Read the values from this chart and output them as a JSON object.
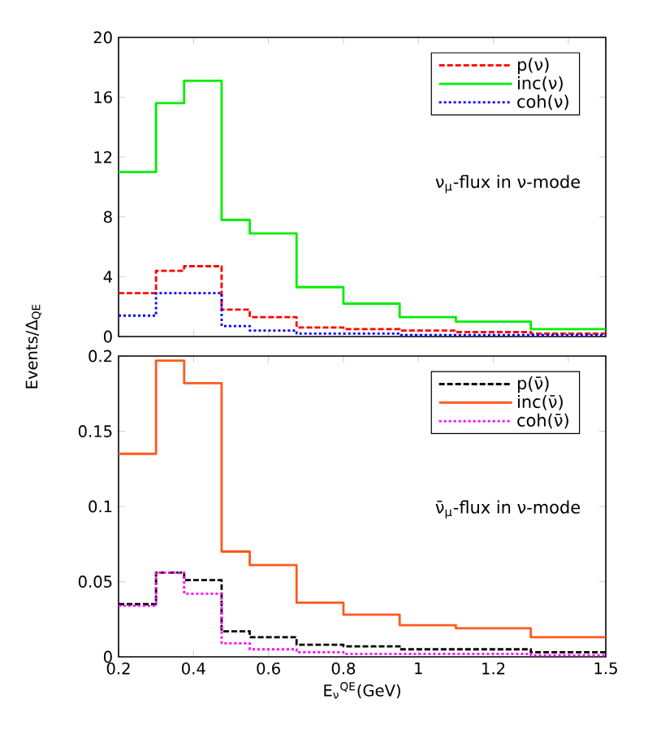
{
  "chart_data": [
    {
      "type": "histogram",
      "ylabel": "Events/Δ$_{QE}$",
      "bins": [
        0.2,
        0.3,
        0.375,
        0.475,
        0.55,
        0.675,
        0.8,
        0.95,
        1.1,
        1.3,
        1.5
      ],
      "series": [
        {
          "name": "p(ν)",
          "color": "#ff0000",
          "line_style": "dashed",
          "values": [
            2.9,
            4.4,
            4.7,
            1.8,
            1.3,
            0.6,
            0.5,
            0.4,
            0.3,
            0.2
          ]
        },
        {
          "name": "inc(ν)",
          "color": "#00ee00",
          "line_style": "solid",
          "values": [
            11,
            15.6,
            17.1,
            7.8,
            6.9,
            3.3,
            2.2,
            1.3,
            1.0,
            0.5
          ]
        },
        {
          "name": "coh(ν)",
          "color": "#0000ff",
          "line_style": "dotted",
          "values": [
            1.4,
            2.9,
            2.9,
            0.7,
            0.4,
            0.2,
            0.2,
            0.1,
            0.1,
            0.1
          ]
        }
      ],
      "annotations": [
        "ν$_{μ}$-flux in ν-mode"
      ],
      "xlim": [
        0.2,
        1.5
      ],
      "ylim": [
        0,
        20
      ],
      "xticks": [
        0.2,
        0.4,
        0.6,
        0.8,
        1,
        1.2,
        {
          "value": 1.4,
          "label": null
        },
        1.5
      ],
      "yticks": [
        0,
        4,
        8,
        12,
        16,
        20
      ],
      "tick_labels": "y",
      "legend": "top right",
      "grid": false
    },
    {
      "type": "histogram",
      "xlabel": "E$_{ν}$$^{QE}$(GeV)",
      "bins": [
        0.2,
        0.3,
        0.375,
        0.475,
        0.55,
        0.675,
        0.8,
        0.95,
        1.1,
        1.3,
        1.5
      ],
      "series": [
        {
          "name": "p(ν̄)",
          "color": "#000000",
          "line_style": "dashed",
          "values": [
            0.035,
            0.056,
            0.051,
            0.017,
            0.013,
            0.008,
            0.007,
            0.005,
            0.005,
            0.003
          ]
        },
        {
          "name": "inc(ν̄)",
          "color": "#ff5a1e",
          "line_style": "solid",
          "values": [
            0.135,
            0.197,
            0.182,
            0.07,
            0.061,
            0.036,
            0.028,
            0.021,
            0.019,
            0.013
          ]
        },
        {
          "name": "coh(ν̄)",
          "color": "#ff00ff",
          "line_style": "dotted",
          "values": [
            0.034,
            0.056,
            0.042,
            0.009,
            0.005,
            0.003,
            0.002,
            0.002,
            0.002,
            0.001
          ]
        }
      ],
      "annotations": [
        "ν̄$_{μ}$-flux in ν-mode"
      ],
      "xlim": [
        0.2,
        1.5
      ],
      "ylim": [
        0,
        0.2
      ],
      "xticks": [
        0.2,
        0.4,
        0.6,
        0.8,
        1,
        1.2,
        {
          "value": 1.4,
          "label": null
        },
        1.5
      ],
      "yticks": [
        0,
        0.05,
        0.1,
        0.15,
        0.2
      ],
      "legend": "top right",
      "grid": false
    }
  ]
}
